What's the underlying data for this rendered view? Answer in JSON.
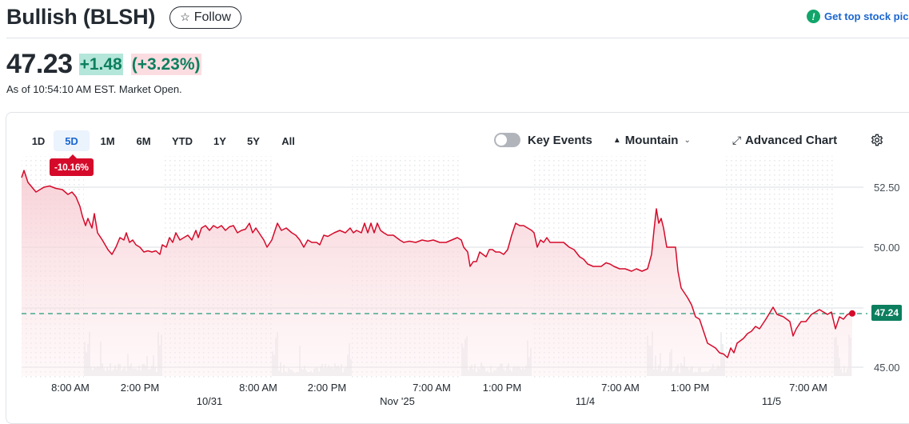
{
  "header": {
    "title": "Bullish (BLSH)",
    "follow_label": "Follow",
    "follow_icon": "star-outline-icon",
    "promo_label": "Get top stock pic",
    "promo_icon": "exclamation-circle-icon"
  },
  "quote": {
    "price": "47.23",
    "change": "+1.48",
    "change_pct": "(+3.23%)",
    "as_of": "As of 10:54:10 AM EST. Market Open."
  },
  "chart_controls": {
    "ranges": [
      "1D",
      "5D",
      "1M",
      "6M",
      "YTD",
      "1Y",
      "5Y",
      "All"
    ],
    "active_range": "5D",
    "range_change_badge": "-10.16%",
    "key_events_label": "Key Events",
    "key_events_on": false,
    "chart_type_label": "Mountain",
    "advanced_chart_label": "Advanced Chart"
  },
  "colors": {
    "line": "#d50a2a",
    "positive": "#0d7f5f",
    "link": "#1a66d0"
  },
  "chart_data": {
    "type": "area",
    "title": "Bullish (BLSH) 5D",
    "xlabel": "",
    "ylabel": "",
    "y_ticks": [
      "52.50",
      "50.00",
      "45.00"
    ],
    "ylim": [
      44.5,
      53.5
    ],
    "current_value_label": "47.24",
    "x_tick_labels": [
      "8:00 AM",
      "2:00 PM",
      "8:00 AM",
      "2:00 PM",
      "7:00 AM",
      "1:00 PM",
      "7:00 AM",
      "1:00 PM",
      "7:00 AM"
    ],
    "x_date_labels": [
      "10/31",
      "Nov '25",
      "11/4",
      "11/5"
    ],
    "grid": true,
    "legend": "none",
    "series": [
      {
        "name": "Price",
        "points": [
          [
            27,
            52.9
          ],
          [
            30,
            53.2
          ],
          [
            35,
            52.7
          ],
          [
            40,
            52.5
          ],
          [
            45,
            52.3
          ],
          [
            50,
            52.4
          ],
          [
            55,
            52.5
          ],
          [
            62,
            52.55
          ],
          [
            70,
            52.45
          ],
          [
            78,
            52.4
          ],
          [
            85,
            52.2
          ],
          [
            90,
            52.3
          ],
          [
            95,
            52.1
          ],
          [
            100,
            51.7
          ],
          [
            103,
            51.3
          ],
          [
            107,
            50.9
          ],
          [
            110,
            51.2
          ],
          [
            115,
            50.8
          ],
          [
            118,
            51.4
          ],
          [
            122,
            50.6
          ],
          [
            128,
            50.3
          ],
          [
            135,
            49.9
          ],
          [
            140,
            49.7
          ],
          [
            145,
            50.0
          ],
          [
            150,
            50.4
          ],
          [
            155,
            50.3
          ],
          [
            158,
            50.6
          ],
          [
            162,
            50.2
          ],
          [
            166,
            50.3
          ],
          [
            170,
            50.1
          ],
          [
            175,
            50.0
          ],
          [
            180,
            49.8
          ],
          [
            185,
            49.85
          ],
          [
            190,
            49.8
          ],
          [
            195,
            49.85
          ],
          [
            200,
            49.7
          ],
          [
            203,
            50.1
          ],
          [
            208,
            50.0
          ],
          [
            212,
            50.4
          ],
          [
            216,
            50.2
          ],
          [
            220,
            50.6
          ],
          [
            225,
            50.3
          ],
          [
            230,
            50.4
          ],
          [
            235,
            50.5
          ],
          [
            240,
            50.3
          ],
          [
            245,
            50.7
          ],
          [
            248,
            50.4
          ],
          [
            252,
            50.8
          ],
          [
            257,
            50.9
          ],
          [
            262,
            50.7
          ],
          [
            267,
            50.9
          ],
          [
            272,
            50.8
          ],
          [
            277,
            50.9
          ],
          [
            282,
            50.7
          ],
          [
            287,
            50.85
          ],
          [
            292,
            50.9
          ],
          [
            297,
            50.6
          ],
          [
            302,
            50.7
          ],
          [
            307,
            50.75
          ],
          [
            312,
            51.0
          ],
          [
            316,
            50.6
          ],
          [
            320,
            50.8
          ],
          [
            326,
            50.5
          ],
          [
            330,
            50.3
          ],
          [
            334,
            50.0
          ],
          [
            340,
            50.3
          ],
          [
            347,
            51.0
          ],
          [
            352,
            50.7
          ],
          [
            358,
            50.8
          ],
          [
            365,
            50.6
          ],
          [
            370,
            50.5
          ],
          [
            375,
            50.3
          ],
          [
            380,
            50.0
          ],
          [
            385,
            50.3
          ],
          [
            390,
            50.2
          ],
          [
            396,
            50.2
          ],
          [
            400,
            50.1
          ],
          [
            405,
            50.5
          ],
          [
            410,
            50.45
          ],
          [
            418,
            50.6
          ],
          [
            425,
            50.7
          ],
          [
            432,
            50.6
          ],
          [
            438,
            50.8
          ],
          [
            442,
            50.6
          ],
          [
            446,
            50.7
          ],
          [
            452,
            50.6
          ],
          [
            456,
            51.0
          ],
          [
            460,
            50.6
          ],
          [
            464,
            51.0
          ],
          [
            468,
            50.6
          ],
          [
            472,
            51.0
          ],
          [
            476,
            50.7
          ],
          [
            480,
            50.6
          ],
          [
            485,
            50.5
          ],
          [
            492,
            50.5
          ],
          [
            500,
            50.3
          ],
          [
            505,
            50.2
          ],
          [
            512,
            50.25
          ],
          [
            520,
            50.2
          ],
          [
            528,
            50.3
          ],
          [
            535,
            50.25
          ],
          [
            542,
            50.3
          ],
          [
            550,
            50.2
          ],
          [
            558,
            50.2
          ],
          [
            565,
            50.3
          ],
          [
            572,
            50.4
          ],
          [
            577,
            50.3
          ],
          [
            580,
            50.0
          ],
          [
            585,
            49.8
          ],
          [
            588,
            49.2
          ],
          [
            592,
            49.4
          ],
          [
            596,
            49.4
          ],
          [
            600,
            49.8
          ],
          [
            604,
            49.7
          ],
          [
            608,
            49.6
          ],
          [
            612,
            49.9
          ],
          [
            616,
            49.9
          ],
          [
            620,
            49.8
          ],
          [
            625,
            49.8
          ],
          [
            630,
            49.7
          ],
          [
            635,
            49.9
          ],
          [
            640,
            50.5
          ],
          [
            645,
            51.0
          ],
          [
            650,
            50.9
          ],
          [
            655,
            50.9
          ],
          [
            660,
            50.8
          ],
          [
            665,
            50.7
          ],
          [
            668,
            50.6
          ],
          [
            672,
            50.0
          ],
          [
            676,
            50.3
          ],
          [
            680,
            50.2
          ],
          [
            684,
            50.4
          ],
          [
            688,
            50.2
          ],
          [
            695,
            50.2
          ],
          [
            705,
            50.2
          ],
          [
            712,
            50.0
          ],
          [
            718,
            49.9
          ],
          [
            725,
            49.6
          ],
          [
            730,
            49.5
          ],
          [
            735,
            49.3
          ],
          [
            742,
            49.2
          ],
          [
            752,
            49.2
          ],
          [
            758,
            49.35
          ],
          [
            763,
            49.3
          ],
          [
            768,
            49.2
          ],
          [
            775,
            49.1
          ],
          [
            782,
            49.1
          ],
          [
            790,
            49.0
          ],
          [
            796,
            49.1
          ],
          [
            803,
            49.0
          ],
          [
            810,
            49.1
          ],
          [
            815,
            49.7
          ],
          [
            818,
            50.7
          ],
          [
            821,
            51.6
          ],
          [
            824,
            51.0
          ],
          [
            827,
            51.2
          ],
          [
            830,
            50.8
          ],
          [
            834,
            50.0
          ],
          [
            840,
            50.0
          ],
          [
            845,
            50.0
          ],
          [
            848,
            49.0
          ],
          [
            852,
            48.3
          ],
          [
            860,
            47.9
          ],
          [
            865,
            47.6
          ],
          [
            870,
            47.1
          ],
          [
            875,
            47.0
          ],
          [
            880,
            46.5
          ],
          [
            885,
            46.0
          ],
          [
            890,
            45.9
          ],
          [
            895,
            45.8
          ],
          [
            900,
            45.6
          ],
          [
            905,
            45.55
          ],
          [
            910,
            45.4
          ],
          [
            914,
            45.8
          ],
          [
            918,
            45.6
          ],
          [
            922,
            46.0
          ],
          [
            930,
            46.2
          ],
          [
            935,
            46.4
          ],
          [
            940,
            46.5
          ],
          [
            945,
            46.7
          ],
          [
            950,
            46.6
          ],
          [
            958,
            47.0
          ],
          [
            967,
            47.5
          ],
          [
            972,
            47.2
          ],
          [
            980,
            47.1
          ],
          [
            988,
            46.9
          ],
          [
            992,
            46.3
          ],
          [
            996,
            46.6
          ],
          [
            1002,
            46.9
          ],
          [
            1008,
            46.9
          ],
          [
            1015,
            47.2
          ],
          [
            1020,
            47.3
          ],
          [
            1025,
            47.4
          ],
          [
            1030,
            47.3
          ],
          [
            1035,
            47.2
          ],
          [
            1040,
            47.3
          ],
          [
            1045,
            46.6
          ],
          [
            1050,
            47.1
          ],
          [
            1055,
            47.0
          ],
          [
            1060,
            47.2
          ],
          [
            1066,
            47.24
          ]
        ]
      }
    ]
  }
}
